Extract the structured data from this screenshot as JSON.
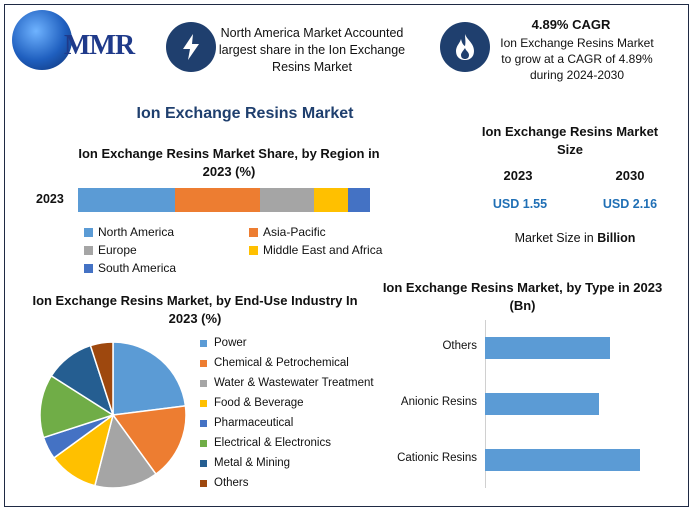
{
  "logo": {
    "text": "MMR"
  },
  "header": {
    "highlight_1": "North America Market Accounted largest share in the Ion Exchange Resins Market",
    "cagr_title": "4.89% CAGR",
    "cagr_text": "Ion Exchange Resins Market to grow at a CAGR of 4.89% during 2024-2030",
    "icon_1": "lightning-icon",
    "icon_2": "flame-icon"
  },
  "main_title": "Ion Exchange Resins Market",
  "market_size": {
    "title": "Ion Exchange Resins Market Size",
    "years": [
      "2023",
      "2030"
    ],
    "values": [
      "USD 1.55",
      "USD 2.16"
    ],
    "note_prefix": "Market Size in ",
    "note_unit": "Billion"
  },
  "colors": {
    "blue": "#5b9bd5",
    "orange": "#ed7d31",
    "gray": "#a5a5a5",
    "yellow": "#ffc000",
    "darkblue": "#4472c4",
    "green": "#70ad47",
    "navy": "#255e91",
    "brown": "#9e480e"
  },
  "chart_data": [
    {
      "type": "bar",
      "orientation": "horizontal-stacked",
      "title": "Ion Exchange Resins Market Share, by Region in 2023 (%)",
      "categories": [
        "2023"
      ],
      "series": [
        {
          "name": "North America",
          "values": [
            33
          ],
          "color": "#5b9bd5"
        },
        {
          "name": "Asia-Pacific",
          "values": [
            29
          ],
          "color": "#ed7d31"
        },
        {
          "name": "Europe",
          "values": [
            18.5
          ],
          "color": "#a5a5a5"
        },
        {
          "name": "Middle East and Africa",
          "values": [
            11.5
          ],
          "color": "#ffc000"
        },
        {
          "name": "South America",
          "values": [
            7.5
          ],
          "color": "#4472c4"
        }
      ],
      "xlim": [
        0,
        100
      ],
      "legend": "bottom"
    },
    {
      "type": "pie",
      "title": "Ion Exchange Resins Market, by End-Use Industry In 2023 (%)",
      "labels": [
        "Power",
        "Chemical & Petrochemical",
        "Water & Wastewater Treatment",
        "Food & Beverage",
        "Pharmaceutical",
        "Electrical & Electronics",
        "Metal & Mining",
        "Others"
      ],
      "values": [
        23,
        17,
        14,
        11,
        5,
        14,
        11,
        5
      ],
      "colors": [
        "#5b9bd5",
        "#ed7d31",
        "#a5a5a5",
        "#ffc000",
        "#4472c4",
        "#70ad47",
        "#255e91",
        "#9e480e"
      ],
      "legend": "right"
    },
    {
      "type": "bar",
      "orientation": "horizontal",
      "title": "Ion Exchange Resins Market, by Type in 2023 (Bn)",
      "categories": [
        "Others",
        "Anionic Resins",
        "Cationic Resins"
      ],
      "values": [
        0.55,
        0.5,
        0.68
      ],
      "color": "#5b9bd5",
      "xlim": [
        0,
        0.8
      ],
      "grid": false
    }
  ]
}
